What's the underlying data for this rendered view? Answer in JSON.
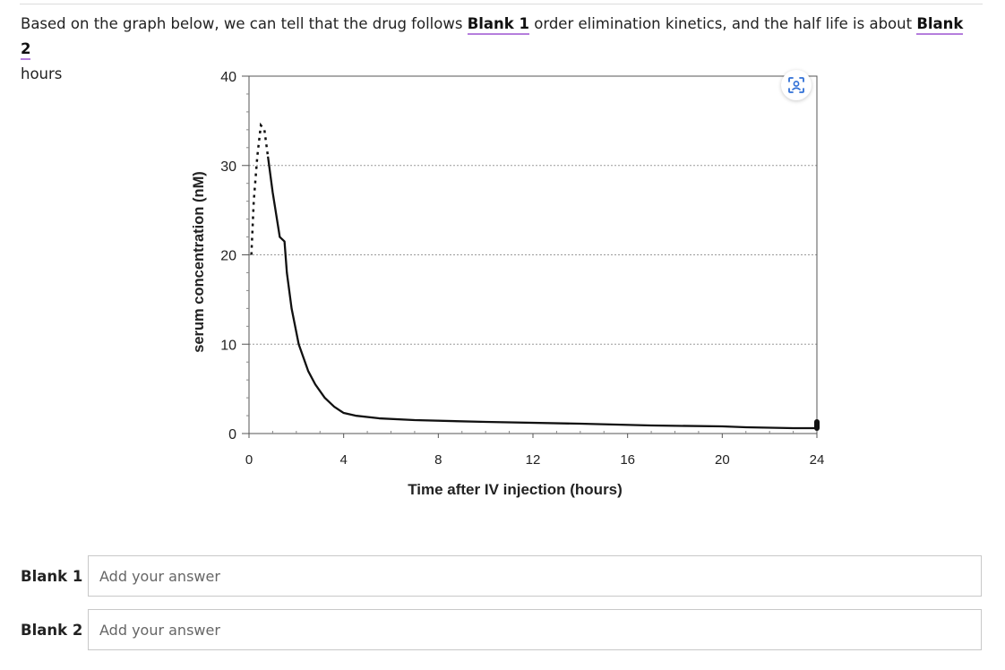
{
  "question": {
    "part1": "Based on the graph below, we can tell that the drug follows ",
    "blank1": "Blank 1",
    "part2": " order elimination kinetics, and the half life is about ",
    "blank2": "Blank 2",
    "part3": " hours"
  },
  "chart_data": {
    "type": "line",
    "xlabel": "Time after IV injection (hours)",
    "ylabel": "serum concentration (nM)",
    "xlim": [
      0,
      24
    ],
    "ylim": [
      0,
      40
    ],
    "x_ticks": [
      0,
      4,
      8,
      12,
      16,
      20,
      24
    ],
    "y_ticks": [
      0,
      10,
      20,
      30,
      40
    ],
    "grid": "horizontal dotted lines at 10, 20, 30",
    "dashed_series": {
      "style": "dashed",
      "x": [
        0.1,
        0.2,
        0.35,
        0.5,
        0.65,
        0.8
      ],
      "y": [
        20,
        26,
        31,
        34.5,
        34,
        31
      ]
    },
    "series": [
      {
        "style": "solid",
        "x": [
          0.8,
          1.0,
          1.3,
          1.5,
          1.6,
          1.8,
          2.1,
          2.5,
          2.8,
          3.2,
          3.6,
          4.0,
          4.5,
          5.5,
          7.0,
          10.0,
          14.0,
          17.0,
          20.0,
          21.0,
          23.0,
          24.0
        ],
        "y": [
          31,
          27,
          22,
          21.5,
          18,
          14,
          10,
          7,
          5.5,
          4,
          3,
          2.3,
          2.0,
          1.7,
          1.5,
          1.3,
          1.1,
          0.9,
          0.8,
          0.7,
          0.6,
          0.6
        ]
      }
    ]
  },
  "icons": {
    "scan": "scan-image-icon"
  },
  "answers": [
    {
      "label": "Blank 1",
      "placeholder": "Add your answer"
    },
    {
      "label": "Blank 2",
      "placeholder": "Add your answer"
    }
  ]
}
